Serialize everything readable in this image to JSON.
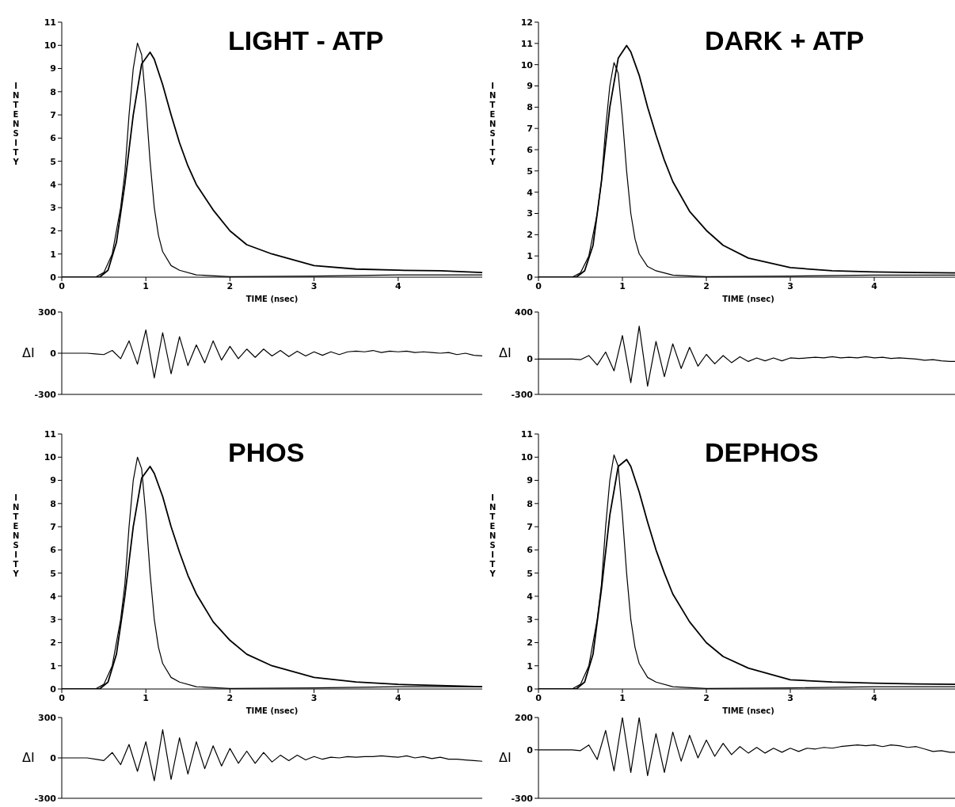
{
  "chart_data": [
    {
      "type": "line",
      "title": "LIGHT - ATP",
      "xlabel": "TIME (nsec)",
      "ylabel": "INTENSITY",
      "xlim": [
        0,
        5
      ],
      "xticks": [
        0,
        1,
        2,
        3,
        4
      ],
      "ylim": [
        0,
        11
      ],
      "yticks": [
        0,
        1,
        2,
        3,
        4,
        5,
        6,
        7,
        8,
        9,
        10,
        11
      ],
      "marker": "none",
      "series": [
        {
          "color": "#000000",
          "x": [
            0,
            0.4,
            0.5,
            0.6,
            0.7,
            0.75,
            0.8,
            0.85,
            0.9,
            0.95,
            1.0,
            1.05,
            1.1,
            1.15,
            1.2,
            1.3,
            1.4,
            1.6,
            2,
            3,
            4,
            5
          ],
          "values": [
            0,
            0,
            0.2,
            1,
            3,
            4.5,
            7,
            9,
            10.1,
            9.6,
            7.5,
            5,
            3,
            1.8,
            1.1,
            0.5,
            0.3,
            0.1,
            0.02,
            0.05,
            0.1,
            0.1
          ]
        },
        {
          "color": "#000000",
          "x": [
            0,
            0.45,
            0.55,
            0.65,
            0.75,
            0.85,
            0.95,
            1.05,
            1.1,
            1.2,
            1.3,
            1.4,
            1.5,
            1.6,
            1.8,
            2.0,
            2.2,
            2.5,
            3,
            3.5,
            4,
            4.5,
            5
          ],
          "values": [
            0,
            0,
            0.3,
            1.5,
            4,
            7,
            9.2,
            9.7,
            9.4,
            8.3,
            7,
            5.8,
            4.8,
            4,
            2.9,
            2,
            1.4,
            1,
            0.5,
            0.35,
            0.3,
            0.28,
            0.2
          ]
        }
      ]
    },
    {
      "type": "line",
      "title": "DARK + ATP",
      "xlabel": "TIME (nsec)",
      "ylabel": "INTENSITY",
      "xlim": [
        0,
        5
      ],
      "xticks": [
        0,
        1,
        2,
        3,
        4
      ],
      "ylim": [
        0,
        12
      ],
      "yticks": [
        0,
        1,
        2,
        3,
        4,
        5,
        6,
        7,
        8,
        9,
        10,
        11,
        12
      ],
      "marker": "none",
      "series": [
        {
          "color": "#000000",
          "x": [
            0,
            0.4,
            0.5,
            0.6,
            0.7,
            0.75,
            0.8,
            0.85,
            0.9,
            0.95,
            1.0,
            1.05,
            1.1,
            1.15,
            1.2,
            1.3,
            1.4,
            1.6,
            2,
            3,
            4,
            5
          ],
          "values": [
            0,
            0,
            0.2,
            1,
            3,
            4.5,
            7,
            9,
            10.1,
            9.6,
            7.5,
            5,
            3,
            1.8,
            1.1,
            0.5,
            0.3,
            0.1,
            0.02,
            0.05,
            0.1,
            0.1
          ]
        },
        {
          "color": "#000000",
          "x": [
            0,
            0.45,
            0.55,
            0.65,
            0.75,
            0.85,
            0.95,
            1.05,
            1.1,
            1.2,
            1.3,
            1.4,
            1.5,
            1.6,
            1.8,
            2.0,
            2.2,
            2.5,
            3,
            3.5,
            4,
            4.5,
            5
          ],
          "values": [
            0,
            0,
            0.3,
            1.5,
            4.5,
            8,
            10.3,
            10.9,
            10.6,
            9.5,
            8,
            6.7,
            5.5,
            4.5,
            3.1,
            2.2,
            1.5,
            0.9,
            0.45,
            0.3,
            0.25,
            0.22,
            0.2
          ]
        }
      ]
    },
    {
      "type": "line",
      "ylabel": "ΔI",
      "xlim": [
        0,
        5
      ],
      "xticks": [
        1,
        2,
        3,
        4
      ],
      "ylim": [
        -300,
        300
      ],
      "yticks": [
        -300,
        0,
        300
      ],
      "tick_labels": "y",
      "marker": "none",
      "x": [
        0,
        0.1,
        0.2,
        0.3,
        0.4,
        0.5,
        0.6,
        0.7,
        0.8,
        0.9,
        1.0,
        1.1,
        1.2,
        1.3,
        1.4,
        1.5,
        1.6,
        1.7,
        1.8,
        1.9,
        2.0,
        2.1,
        2.2,
        2.3,
        2.4,
        2.5,
        2.6,
        2.7,
        2.8,
        2.9,
        3.0,
        3.1,
        3.2,
        3.3,
        3.4,
        3.5,
        3.6,
        3.7,
        3.8,
        3.9,
        4.0,
        4.1,
        4.2,
        4.3,
        4.4,
        4.5,
        4.6,
        4.7,
        4.8,
        4.9,
        5.0
      ],
      "series": [
        {
          "color": "#000000",
          "values": [
            0,
            0,
            0,
            0,
            -5,
            -10,
            20,
            -40,
            90,
            -80,
            170,
            -180,
            150,
            -150,
            120,
            -90,
            60,
            -70,
            90,
            -50,
            50,
            -40,
            30,
            -30,
            30,
            -20,
            20,
            -25,
            15,
            -20,
            10,
            -15,
            10,
            -10,
            10,
            15,
            10,
            20,
            5,
            15,
            10,
            15,
            5,
            10,
            5,
            0,
            5,
            -10,
            0,
            -15,
            -20
          ]
        }
      ]
    },
    {
      "type": "line",
      "ylabel": "ΔI",
      "xlim": [
        0,
        5
      ],
      "xticks": [
        1,
        2,
        3,
        4
      ],
      "ylim": [
        -300,
        400
      ],
      "yticks": [
        -300,
        0,
        400
      ],
      "tick_labels": "y",
      "marker": "none",
      "x": [
        0,
        0.1,
        0.2,
        0.3,
        0.4,
        0.5,
        0.6,
        0.7,
        0.8,
        0.9,
        1.0,
        1.1,
        1.2,
        1.3,
        1.4,
        1.5,
        1.6,
        1.7,
        1.8,
        1.9,
        2.0,
        2.1,
        2.2,
        2.3,
        2.4,
        2.5,
        2.6,
        2.7,
        2.8,
        2.9,
        3.0,
        3.1,
        3.2,
        3.3,
        3.4,
        3.5,
        3.6,
        3.7,
        3.8,
        3.9,
        4.0,
        4.1,
        4.2,
        4.3,
        4.4,
        4.5,
        4.6,
        4.7,
        4.8,
        4.9,
        5.0
      ],
      "series": [
        {
          "color": "#000000",
          "values": [
            0,
            0,
            0,
            0,
            0,
            -5,
            30,
            -50,
            60,
            -100,
            200,
            -200,
            280,
            -230,
            150,
            -150,
            130,
            -80,
            100,
            -60,
            40,
            -40,
            30,
            -30,
            20,
            -20,
            10,
            -15,
            10,
            -15,
            10,
            5,
            10,
            15,
            10,
            20,
            10,
            15,
            10,
            20,
            10,
            15,
            5,
            10,
            5,
            0,
            -10,
            -5,
            -15,
            -20,
            -20
          ]
        }
      ]
    },
    {
      "type": "line",
      "title": "PHOS",
      "xlabel": "TIME (nsec)",
      "ylabel": "INTENSITY",
      "xlim": [
        0,
        5
      ],
      "xticks": [
        0,
        1,
        2,
        3,
        4
      ],
      "ylim": [
        0,
        11
      ],
      "yticks": [
        0,
        1,
        2,
        3,
        4,
        5,
        6,
        7,
        8,
        9,
        10,
        11
      ],
      "marker": "none",
      "series": [
        {
          "color": "#000000",
          "x": [
            0,
            0.4,
            0.5,
            0.6,
            0.7,
            0.75,
            0.8,
            0.85,
            0.9,
            0.95,
            1.0,
            1.05,
            1.1,
            1.15,
            1.2,
            1.3,
            1.4,
            1.6,
            2,
            3,
            4,
            5
          ],
          "values": [
            0,
            0,
            0.2,
            1,
            3,
            4.5,
            7,
            9,
            10,
            9.5,
            7.5,
            5,
            3,
            1.8,
            1.1,
            0.5,
            0.3,
            0.1,
            0.02,
            0.05,
            0.1,
            0.1
          ]
        },
        {
          "color": "#000000",
          "x": [
            0,
            0.45,
            0.55,
            0.65,
            0.75,
            0.85,
            0.95,
            1.05,
            1.1,
            1.2,
            1.3,
            1.4,
            1.5,
            1.6,
            1.8,
            2.0,
            2.2,
            2.5,
            3,
            3.5,
            4,
            4.5,
            5
          ],
          "values": [
            0,
            0,
            0.3,
            1.5,
            4,
            7,
            9.1,
            9.6,
            9.3,
            8.3,
            7,
            5.9,
            4.9,
            4.1,
            2.9,
            2.1,
            1.5,
            1,
            0.5,
            0.3,
            0.2,
            0.15,
            0.1
          ]
        }
      ]
    },
    {
      "type": "line",
      "title": "DEPHOS",
      "xlabel": "TIME (nsec)",
      "ylabel": "INTENSITY",
      "xlim": [
        0,
        5
      ],
      "xticks": [
        0,
        1,
        2,
        3,
        4
      ],
      "ylim": [
        0,
        11
      ],
      "yticks": [
        0,
        1,
        2,
        3,
        4,
        5,
        6,
        7,
        8,
        9,
        10,
        11
      ],
      "marker": "none",
      "series": [
        {
          "color": "#000000",
          "x": [
            0,
            0.4,
            0.5,
            0.6,
            0.7,
            0.75,
            0.8,
            0.85,
            0.9,
            0.95,
            1.0,
            1.05,
            1.1,
            1.15,
            1.2,
            1.3,
            1.4,
            1.6,
            2,
            3,
            4,
            5
          ],
          "values": [
            0,
            0,
            0.2,
            1,
            3,
            4.5,
            7,
            9,
            10.1,
            9.6,
            7.5,
            5,
            3,
            1.8,
            1.1,
            0.5,
            0.3,
            0.1,
            0.02,
            0.05,
            0.1,
            0.1
          ]
        },
        {
          "color": "#000000",
          "x": [
            0,
            0.45,
            0.55,
            0.65,
            0.75,
            0.85,
            0.95,
            1.05,
            1.1,
            1.2,
            1.3,
            1.4,
            1.5,
            1.6,
            1.8,
            2.0,
            2.2,
            2.5,
            3,
            3.5,
            4,
            4.5,
            5
          ],
          "values": [
            0,
            0,
            0.3,
            1.5,
            4.3,
            7.5,
            9.6,
            9.9,
            9.6,
            8.5,
            7.2,
            6,
            5,
            4.1,
            2.9,
            2,
            1.4,
            0.9,
            0.4,
            0.3,
            0.25,
            0.22,
            0.2
          ]
        }
      ]
    },
    {
      "type": "line",
      "ylabel": "ΔI",
      "xlim": [
        0,
        5
      ],
      "xticks": [
        1,
        2,
        3,
        4
      ],
      "ylim": [
        -300,
        300
      ],
      "yticks": [
        -300,
        0,
        300
      ],
      "tick_labels": "y",
      "marker": "none",
      "x": [
        0,
        0.1,
        0.2,
        0.3,
        0.4,
        0.5,
        0.6,
        0.7,
        0.8,
        0.9,
        1.0,
        1.1,
        1.2,
        1.3,
        1.4,
        1.5,
        1.6,
        1.7,
        1.8,
        1.9,
        2.0,
        2.1,
        2.2,
        2.3,
        2.4,
        2.5,
        2.6,
        2.7,
        2.8,
        2.9,
        3.0,
        3.1,
        3.2,
        3.3,
        3.4,
        3.5,
        3.6,
        3.7,
        3.8,
        3.9,
        4.0,
        4.1,
        4.2,
        4.3,
        4.4,
        4.5,
        4.6,
        4.7,
        4.8,
        4.9,
        5.0
      ],
      "series": [
        {
          "color": "#000000",
          "values": [
            0,
            0,
            0,
            0,
            -10,
            -20,
            40,
            -50,
            100,
            -100,
            120,
            -170,
            210,
            -160,
            150,
            -120,
            120,
            -80,
            90,
            -60,
            70,
            -40,
            50,
            -40,
            40,
            -30,
            20,
            -20,
            20,
            -15,
            10,
            -10,
            5,
            0,
            10,
            5,
            10,
            10,
            15,
            10,
            5,
            15,
            0,
            10,
            -5,
            5,
            -10,
            -10,
            -15,
            -20,
            -25
          ]
        }
      ]
    },
    {
      "type": "line",
      "ylabel": "ΔI",
      "xlim": [
        0,
        5
      ],
      "xticks": [
        1,
        2,
        3,
        4
      ],
      "ylim": [
        -300,
        200
      ],
      "yticks": [
        -300,
        0,
        200
      ],
      "tick_labels": "y",
      "marker": "none",
      "x": [
        0,
        0.1,
        0.2,
        0.3,
        0.4,
        0.5,
        0.6,
        0.7,
        0.8,
        0.9,
        1.0,
        1.1,
        1.2,
        1.3,
        1.4,
        1.5,
        1.6,
        1.7,
        1.8,
        1.9,
        2.0,
        2.1,
        2.2,
        2.3,
        2.4,
        2.5,
        2.6,
        2.7,
        2.8,
        2.9,
        3.0,
        3.1,
        3.2,
        3.3,
        3.4,
        3.5,
        3.6,
        3.7,
        3.8,
        3.9,
        4.0,
        4.1,
        4.2,
        4.3,
        4.4,
        4.5,
        4.6,
        4.7,
        4.8,
        4.9,
        5.0
      ],
      "series": [
        {
          "color": "#000000",
          "values": [
            0,
            0,
            0,
            0,
            0,
            -5,
            30,
            -60,
            120,
            -130,
            200,
            -140,
            200,
            -160,
            100,
            -140,
            110,
            -70,
            90,
            -50,
            60,
            -40,
            40,
            -30,
            20,
            -20,
            15,
            -20,
            10,
            -15,
            10,
            -10,
            10,
            5,
            15,
            10,
            20,
            25,
            30,
            25,
            30,
            20,
            30,
            25,
            15,
            20,
            5,
            -10,
            -5,
            -15,
            -15
          ]
        }
      ]
    }
  ]
}
